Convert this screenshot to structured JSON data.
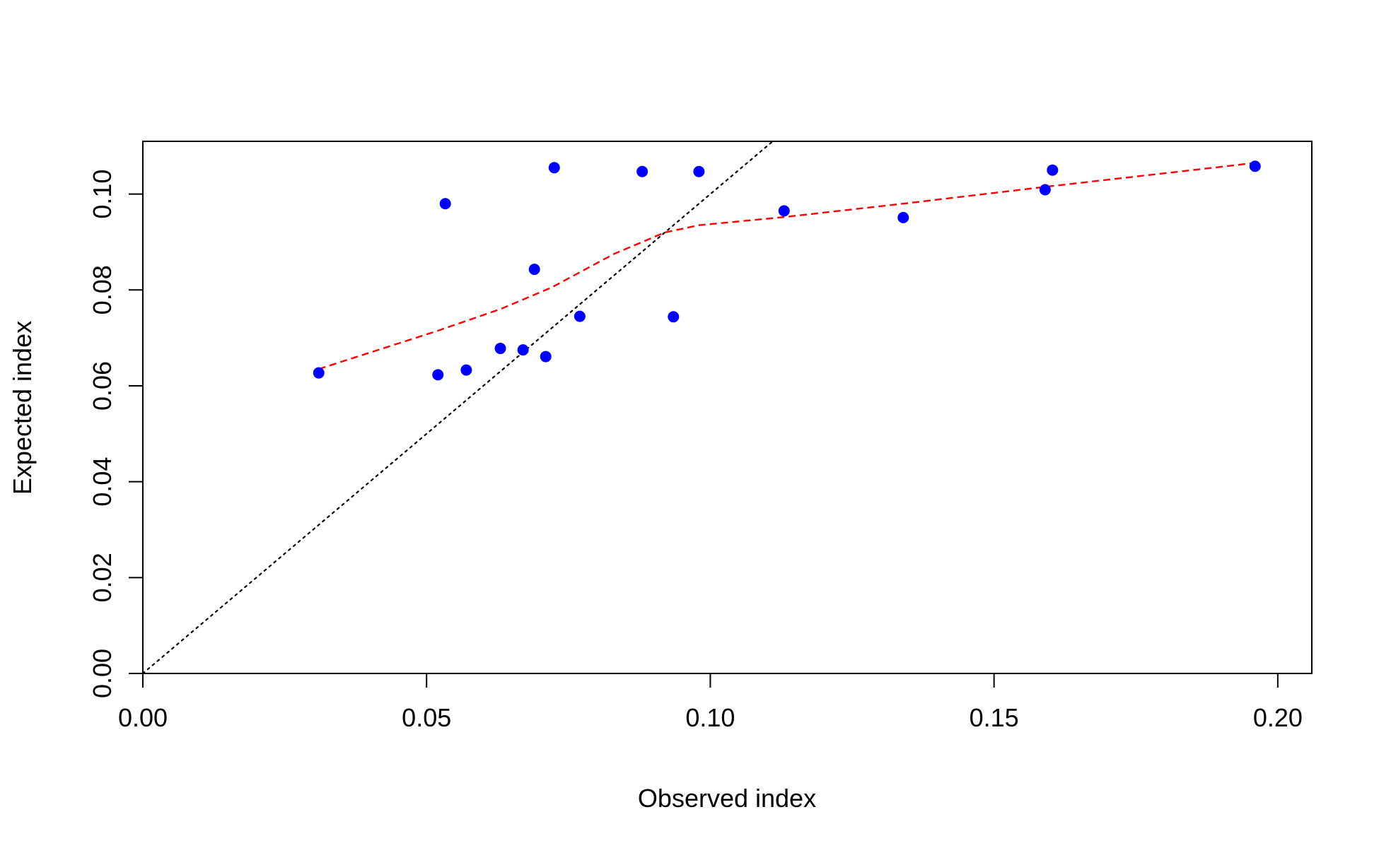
{
  "chart_data": {
    "type": "scatter",
    "title": "",
    "xlabel": "Observed index",
    "ylabel": "Expected index",
    "xlim": [
      0.0,
      0.206
    ],
    "ylim": [
      0.0,
      0.111
    ],
    "x_ticks": [
      0.0,
      0.05,
      0.1,
      0.15,
      0.2
    ],
    "x_tick_labels": [
      "0.00",
      "0.05",
      "0.10",
      "0.15",
      "0.20"
    ],
    "y_ticks": [
      0.0,
      0.02,
      0.04,
      0.06,
      0.08,
      0.1
    ],
    "y_tick_labels": [
      "0.00",
      "0.02",
      "0.04",
      "0.06",
      "0.08",
      "0.10"
    ],
    "grid": false,
    "legend": "none",
    "colors": {
      "points": "#0000ff",
      "smooth_line": "#ff0000",
      "identity_line": "#000000"
    },
    "series": [
      {
        "kind": "points",
        "x": [
          0.031,
          0.052,
          0.0533,
          0.057,
          0.063,
          0.067,
          0.069,
          0.071,
          0.0725,
          0.077,
          0.088,
          0.0935,
          0.098,
          0.113,
          0.134,
          0.159,
          0.1603,
          0.196
        ],
        "y": [
          0.0627,
          0.0623,
          0.098,
          0.0633,
          0.0678,
          0.0675,
          0.0843,
          0.0661,
          0.1055,
          0.0745,
          0.1047,
          0.0744,
          0.1047,
          0.0965,
          0.0951,
          0.1009,
          0.105,
          0.1058
        ]
      },
      {
        "kind": "smooth-line",
        "x": [
          0.031,
          0.052,
          0.063,
          0.072,
          0.083,
          0.092,
          0.098,
          0.113,
          0.134,
          0.159,
          0.196
        ],
        "y": [
          0.0635,
          0.0715,
          0.076,
          0.0805,
          0.0875,
          0.092,
          0.0935,
          0.0952,
          0.098,
          0.1015,
          0.1065
        ]
      },
      {
        "kind": "identity-line",
        "x": [
          0.0,
          0.206
        ],
        "y": [
          0.0,
          0.206
        ]
      }
    ]
  }
}
